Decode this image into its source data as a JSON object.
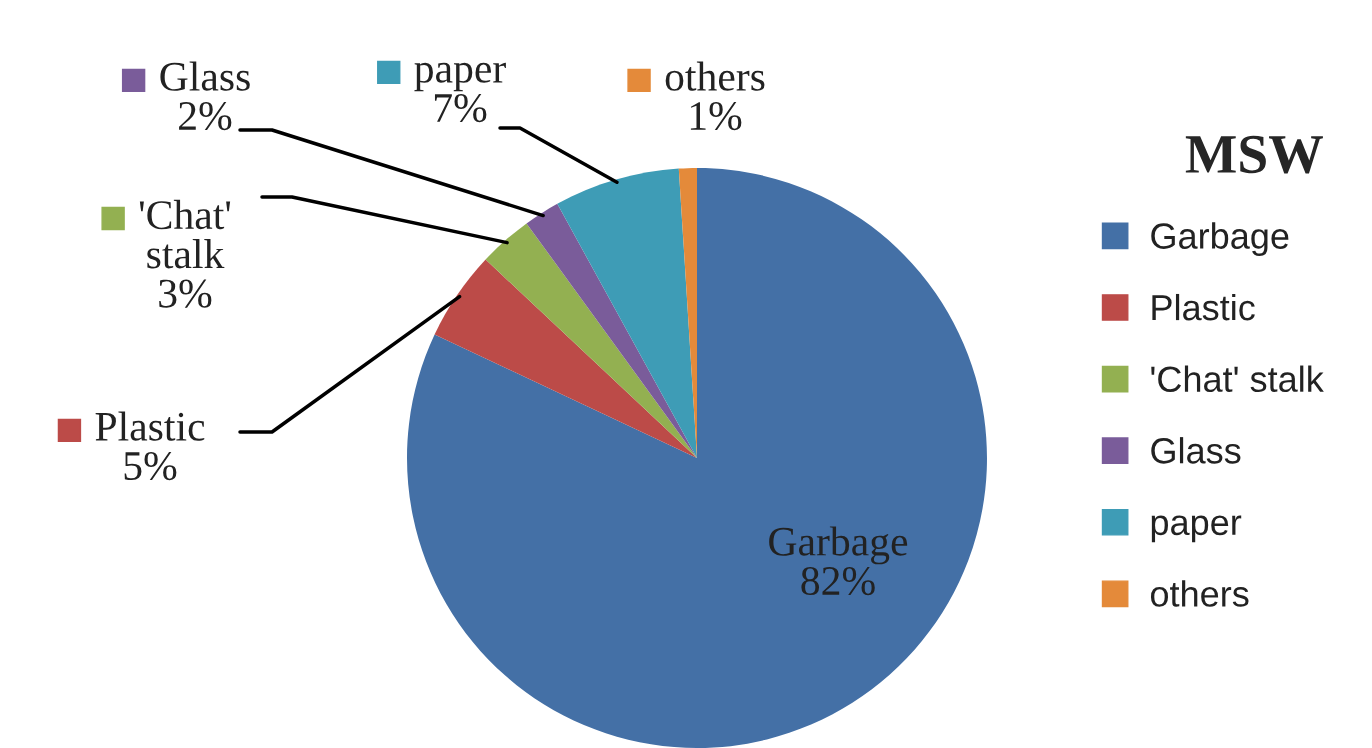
{
  "chart_data": {
    "type": "pie",
    "legend_title": "MSW",
    "legend": "right",
    "categories": [
      "Garbage",
      "Plastic",
      "'Chat' stalk",
      "Glass",
      "paper",
      "others"
    ],
    "values": [
      82,
      5,
      3,
      2,
      7,
      1
    ],
    "value_labels": [
      "82%",
      "5%",
      "3%",
      "2%",
      "7%",
      "1%"
    ],
    "colors": [
      "#4470a6",
      "#bc4b48",
      "#93b051",
      "#7a5c9a",
      "#3e9cb6",
      "#e48a3a"
    ]
  }
}
